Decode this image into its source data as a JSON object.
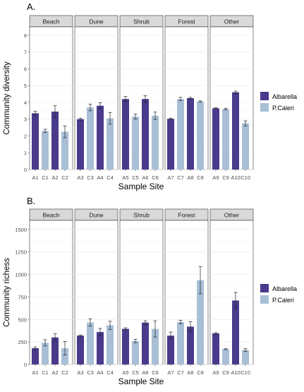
{
  "colors": {
    "Albarella": "#4a3a8c",
    "P.Caleri": "#a8bfd6",
    "strip_bg": "#d9d9d9",
    "grid": "#ebebeb",
    "axis_text": "#4d4d4d"
  },
  "legend": {
    "items": [
      {
        "name": "Albarella",
        "color": "#4a3a8c"
      },
      {
        "name": "P.Caleri",
        "color": "#a8bfd6"
      }
    ]
  },
  "chart_data": [
    {
      "type": "bar",
      "panel_tag": "A.",
      "xlabel": "Sample Site",
      "ylabel": "Community diversity",
      "ylim": [
        0,
        8.5
      ],
      "yticks": [
        0,
        1,
        2,
        3,
        4,
        5,
        6,
        7,
        8
      ],
      "grid": true,
      "legend_position": "right",
      "facets": [
        {
          "name": "Beach",
          "bars": [
            {
              "site": "A1",
              "group": "Albarella",
              "value": 3.35,
              "err": 0.12
            },
            {
              "site": "C1",
              "group": "P.Caleri",
              "value": 2.3,
              "err": 0.1
            },
            {
              "site": "A2",
              "group": "Albarella",
              "value": 3.45,
              "err": 0.35
            },
            {
              "site": "C2",
              "group": "P.Caleri",
              "value": 2.25,
              "err": 0.35
            }
          ]
        },
        {
          "name": "Dune",
          "bars": [
            {
              "site": "A3",
              "group": "Albarella",
              "value": 3.0,
              "err": 0.06
            },
            {
              "site": "C3",
              "group": "P.Caleri",
              "value": 3.7,
              "err": 0.2
            },
            {
              "site": "A4",
              "group": "Albarella",
              "value": 3.8,
              "err": 0.18
            },
            {
              "site": "C4",
              "group": "P.Caleri",
              "value": 3.05,
              "err": 0.35
            }
          ]
        },
        {
          "name": "Shrub",
          "bars": [
            {
              "site": "A5",
              "group": "Albarella",
              "value": 4.2,
              "err": 0.15
            },
            {
              "site": "C5",
              "group": "P.Caleri",
              "value": 3.15,
              "err": 0.15
            },
            {
              "site": "A6",
              "group": "Albarella",
              "value": 4.2,
              "err": 0.2
            },
            {
              "site": "C6",
              "group": "P.Caleri",
              "value": 3.2,
              "err": 0.22
            }
          ]
        },
        {
          "name": "Forest",
          "bars": [
            {
              "site": "A7",
              "group": "Albarella",
              "value": 3.02,
              "err": 0.04
            },
            {
              "site": "C7",
              "group": "P.Caleri",
              "value": 4.2,
              "err": 0.1
            },
            {
              "site": "A8",
              "group": "Albarella",
              "value": 4.25,
              "err": 0.05
            },
            {
              "site": "C8",
              "group": "P.Caleri",
              "value": 4.05,
              "err": 0.04
            }
          ]
        },
        {
          "name": "Other",
          "bars": [
            {
              "site": "A9",
              "group": "Albarella",
              "value": 3.65,
              "err": 0.03
            },
            {
              "site": "C9",
              "group": "P.Caleri",
              "value": 3.6,
              "err": 0.05
            },
            {
              "site": "A10",
              "group": "Albarella",
              "value": 4.6,
              "err": 0.07
            },
            {
              "site": "C10",
              "group": "P.Caleri",
              "value": 2.75,
              "err": 0.15
            }
          ]
        }
      ]
    },
    {
      "type": "bar",
      "panel_tag": "B.",
      "xlabel": "Sample Site",
      "ylabel": "Community richess",
      "ylim": [
        0,
        1600
      ],
      "yticks": [
        0,
        250,
        500,
        750,
        1000,
        1250,
        1500
      ],
      "grid": true,
      "legend_position": "right",
      "facets": [
        {
          "name": "Beach",
          "bars": [
            {
              "site": "A1",
              "group": "Albarella",
              "value": 180,
              "err": 15
            },
            {
              "site": "C1",
              "group": "P.Caleri",
              "value": 240,
              "err": 35
            },
            {
              "site": "A2",
              "group": "Albarella",
              "value": 300,
              "err": 40
            },
            {
              "site": "C2",
              "group": "P.Caleri",
              "value": 180,
              "err": 75
            }
          ]
        },
        {
          "name": "Dune",
          "bars": [
            {
              "site": "A3",
              "group": "Albarella",
              "value": 320,
              "err": 8
            },
            {
              "site": "C3",
              "group": "P.Caleri",
              "value": 465,
              "err": 40
            },
            {
              "site": "A4",
              "group": "Albarella",
              "value": 360,
              "err": 40
            },
            {
              "site": "C4",
              "group": "P.Caleri",
              "value": 435,
              "err": 45
            }
          ]
        },
        {
          "name": "Shrub",
          "bars": [
            {
              "site": "A5",
              "group": "Albarella",
              "value": 395,
              "err": 12
            },
            {
              "site": "C5",
              "group": "P.Caleri",
              "value": 260,
              "err": 18
            },
            {
              "site": "A6",
              "group": "Albarella",
              "value": 465,
              "err": 20
            },
            {
              "site": "C6",
              "group": "P.Caleri",
              "value": 395,
              "err": 90
            }
          ]
        },
        {
          "name": "Forest",
          "bars": [
            {
              "site": "A7",
              "group": "Albarella",
              "value": 320,
              "err": 40
            },
            {
              "site": "C7",
              "group": "P.Caleri",
              "value": 470,
              "err": 20
            },
            {
              "site": "A8",
              "group": "Albarella",
              "value": 420,
              "err": 55
            },
            {
              "site": "C8",
              "group": "P.Caleri",
              "value": 935,
              "err": 150
            }
          ]
        },
        {
          "name": "Other",
          "bars": [
            {
              "site": "A9",
              "group": "Albarella",
              "value": 345,
              "err": 8
            },
            {
              "site": "C9",
              "group": "P.Caleri",
              "value": 170,
              "err": 5
            },
            {
              "site": "A10",
              "group": "Albarella",
              "value": 710,
              "err": 90
            },
            {
              "site": "C10",
              "group": "P.Caleri",
              "value": 160,
              "err": 15
            }
          ]
        }
      ]
    }
  ]
}
